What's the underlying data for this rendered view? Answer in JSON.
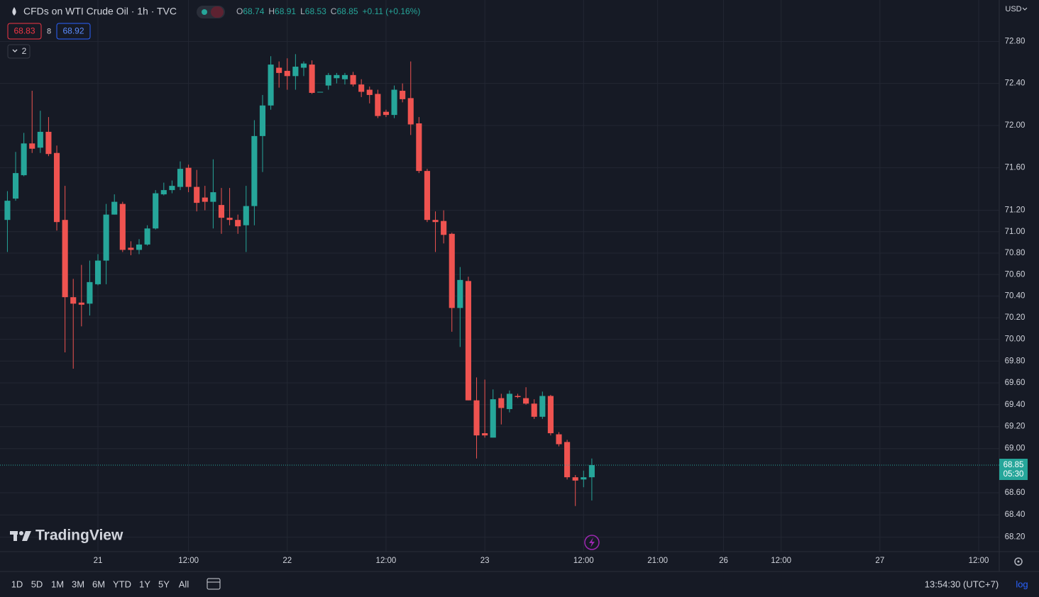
{
  "chart_data": {
    "type": "candlestick",
    "title": "CFDs on WTI Crude Oil · 1h · TVC",
    "up_color": "#26a69a",
    "down_color": "#ef5350",
    "log": true,
    "grid": true,
    "ylim": [
      68.07,
      73.2
    ],
    "yticks": [
      {
        "value": 72.8,
        "label": "72.80"
      },
      {
        "value": 72.4,
        "label": "72.40"
      },
      {
        "value": 72,
        "label": "72.00"
      },
      {
        "value": 71.6,
        "label": "71.60"
      },
      {
        "value": 71.2,
        "label": "71.20"
      },
      {
        "value": 71,
        "label": "71.00"
      },
      {
        "value": 70.8,
        "label": "70.80"
      },
      {
        "value": 70.6,
        "label": "70.60"
      },
      {
        "value": 70.4,
        "label": "70.40"
      },
      {
        "value": 70.2,
        "label": "70.20"
      },
      {
        "value": 70,
        "label": "70.00"
      },
      {
        "value": 69.8,
        "label": "69.80"
      },
      {
        "value": 69.6,
        "label": "69.60"
      },
      {
        "value": 69.4,
        "label": "69.40"
      },
      {
        "value": 69.2,
        "label": "69.20"
      },
      {
        "value": 69,
        "label": "69.00"
      },
      {
        "value": 68.6,
        "label": "68.60"
      },
      {
        "value": 68.4,
        "label": "68.40"
      },
      {
        "value": 68.2,
        "label": "68.20"
      }
    ],
    "xlim": [
      -0.9,
      120.5
    ],
    "xticks": [
      {
        "value": 11,
        "label": "21"
      },
      {
        "value": 22,
        "label": "12:00"
      },
      {
        "value": 34,
        "label": "22"
      },
      {
        "value": 46,
        "label": "12:00"
      },
      {
        "value": 58,
        "label": "23"
      },
      {
        "value": 70,
        "label": "12:00"
      },
      {
        "value": 79,
        "label": "21:00"
      },
      {
        "value": 87,
        "label": "26"
      },
      {
        "value": 94,
        "label": "12:00"
      },
      {
        "value": 106,
        "label": "27"
      },
      {
        "value": 118,
        "label": "12:00"
      }
    ],
    "open": [
      71.11,
      71.31,
      71.53,
      71.83,
      71.79,
      71.94,
      71.74,
      71.11,
      70.39,
      70.34,
      70.33,
      70.51,
      70.73,
      71.16,
      71.26,
      70.85,
      70.83,
      70.88,
      71.03,
      71.35,
      71.39,
      71.42,
      71.6,
      71.42,
      71.32,
      71.28,
      71.25,
      71.13,
      71.11,
      71.06,
      71.24,
      71.9,
      72.19,
      72.55,
      72.52,
      72.47,
      72.55,
      72.58,
      72.32,
      72.38,
      72.45,
      72.44,
      72.48,
      72.39,
      72.34,
      72.3,
      72.13,
      72.1,
      72.33,
      72.26,
      72.02,
      71.57,
      71.11,
      71.1,
      70.98,
      70.29,
      70.54,
      69.44,
      69.14,
      69.1,
      69.46,
      69.36,
      69.48,
      69.46,
      69.41,
      69.29,
      69.48,
      69.13,
      69.06,
      68.74,
      68.72,
      68.74
    ],
    "high": [
      71.38,
      71.75,
      71.93,
      72.33,
      72.14,
      72.08,
      71.81,
      71.43,
      70.56,
      70.69,
      70.73,
      70.79,
      71.26,
      71.35,
      71.28,
      70.91,
      70.93,
      71.06,
      71.39,
      71.46,
      71.48,
      71.66,
      71.63,
      71.58,
      71.43,
      71.68,
      71.41,
      71.41,
      71.16,
      71.43,
      72.05,
      72.29,
      72.66,
      72.61,
      72.64,
      72.68,
      72.61,
      72.62,
      72.32,
      72.5,
      72.5,
      72.5,
      72.51,
      72.44,
      72.37,
      72.34,
      72.15,
      72.38,
      72.4,
      72.61,
      72.08,
      71.59,
      71.19,
      71.2,
      70.99,
      70.67,
      70.58,
      69.65,
      69.63,
      69.54,
      69.5,
      69.53,
      69.5,
      69.56,
      69.45,
      69.52,
      69.49,
      69.15,
      69.08,
      68.76,
      68.8,
      68.91
    ],
    "low": [
      70.81,
      71.29,
      71.52,
      71.74,
      71.74,
      71.71,
      71.01,
      69.88,
      69.73,
      70.12,
      70.22,
      70.5,
      70.51,
      71.16,
      70.81,
      70.78,
      70.79,
      70.87,
      71.02,
      71.34,
      71.36,
      71.39,
      71.37,
      71.19,
      71.2,
      71.03,
      70.98,
      71.06,
      70.98,
      70.81,
      71.06,
      71.56,
      72.15,
      72.36,
      72.34,
      72.34,
      72.47,
      72.3,
      72.32,
      72.34,
      72.4,
      72.39,
      72.37,
      72.27,
      72.21,
      72.07,
      72.08,
      72.07,
      72.22,
      71.91,
      71.55,
      71.09,
      70.81,
      70.89,
      70.07,
      69.93,
      69.44,
      68.91,
      69.1,
      69.1,
      69.22,
      69.33,
      69.46,
      69.4,
      69.27,
      69.27,
      69.12,
      69.02,
      68.72,
      68.48,
      68.65,
      68.53
    ],
    "close": [
      71.29,
      71.55,
      71.83,
      71.78,
      71.94,
      71.73,
      71.09,
      70.39,
      70.33,
      70.32,
      70.53,
      70.73,
      71.16,
      71.28,
      70.83,
      70.83,
      70.88,
      71.03,
      71.36,
      71.39,
      71.43,
      71.59,
      71.42,
      71.27,
      71.28,
      71.37,
      71.13,
      71.11,
      71.05,
      71.24,
      71.9,
      72.19,
      72.58,
      72.5,
      72.47,
      72.56,
      72.59,
      72.31,
      72.32,
      72.48,
      72.48,
      72.48,
      72.39,
      72.32,
      72.29,
      72.09,
      72.1,
      72.34,
      72.25,
      72.01,
      71.57,
      71.11,
      71.09,
      70.97,
      70.29,
      70.55,
      69.44,
      69.12,
      69.12,
      69.45,
      69.37,
      69.5,
      69.47,
      69.41,
      69.29,
      69.48,
      69.14,
      69.04,
      68.74,
      68.71,
      68.74,
      68.85
    ]
  },
  "ui": {
    "legend": {
      "o": "O",
      "open": "68.74",
      "h": "H",
      "high": "68.91",
      "l": "L",
      "low": "68.53",
      "c": "C",
      "close": "68.85",
      "change": "+0.11 (+0.16%)"
    },
    "bid": "68.83",
    "spread": "8",
    "ask": "68.92",
    "indicators": "2",
    "currency": "USD",
    "price_label": {
      "price": "68.85",
      "countdown": "05:30"
    },
    "watermark": "TradingView",
    "ranges": [
      "1D",
      "5D",
      "1M",
      "3M",
      "6M",
      "YTD",
      "1Y",
      "5Y",
      "All"
    ],
    "clock": "13:54:30 (UTC+7)",
    "log": "log"
  }
}
